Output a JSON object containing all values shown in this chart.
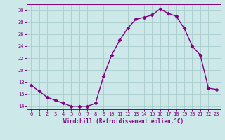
{
  "x": [
    0,
    1,
    2,
    3,
    4,
    5,
    6,
    7,
    8,
    9,
    10,
    11,
    12,
    13,
    14,
    15,
    16,
    17,
    18,
    19,
    20,
    21,
    22,
    23
  ],
  "y": [
    17.5,
    16.5,
    15.5,
    15.0,
    14.5,
    14.0,
    14.0,
    14.0,
    14.5,
    19.0,
    22.5,
    25.0,
    27.0,
    28.5,
    28.8,
    29.2,
    30.2,
    29.5,
    29.0,
    27.0,
    24.0,
    22.5,
    17.0,
    16.8
  ],
  "line_color": "#800080",
  "marker": "D",
  "marker_size": 2.5,
  "bg_color": "#cce8e8",
  "grid_color": "#aacccc",
  "xlabel": "Windchill (Refroidissement éolien,°C)",
  "tick_color": "#800080",
  "ylim": [
    13.5,
    31.0
  ],
  "xlim": [
    -0.5,
    23.5
  ],
  "yticks": [
    14,
    16,
    18,
    20,
    22,
    24,
    26,
    28,
    30
  ],
  "xticks": [
    0,
    1,
    2,
    3,
    4,
    5,
    6,
    7,
    8,
    9,
    10,
    11,
    12,
    13,
    14,
    15,
    16,
    17,
    18,
    19,
    20,
    21,
    22,
    23
  ]
}
